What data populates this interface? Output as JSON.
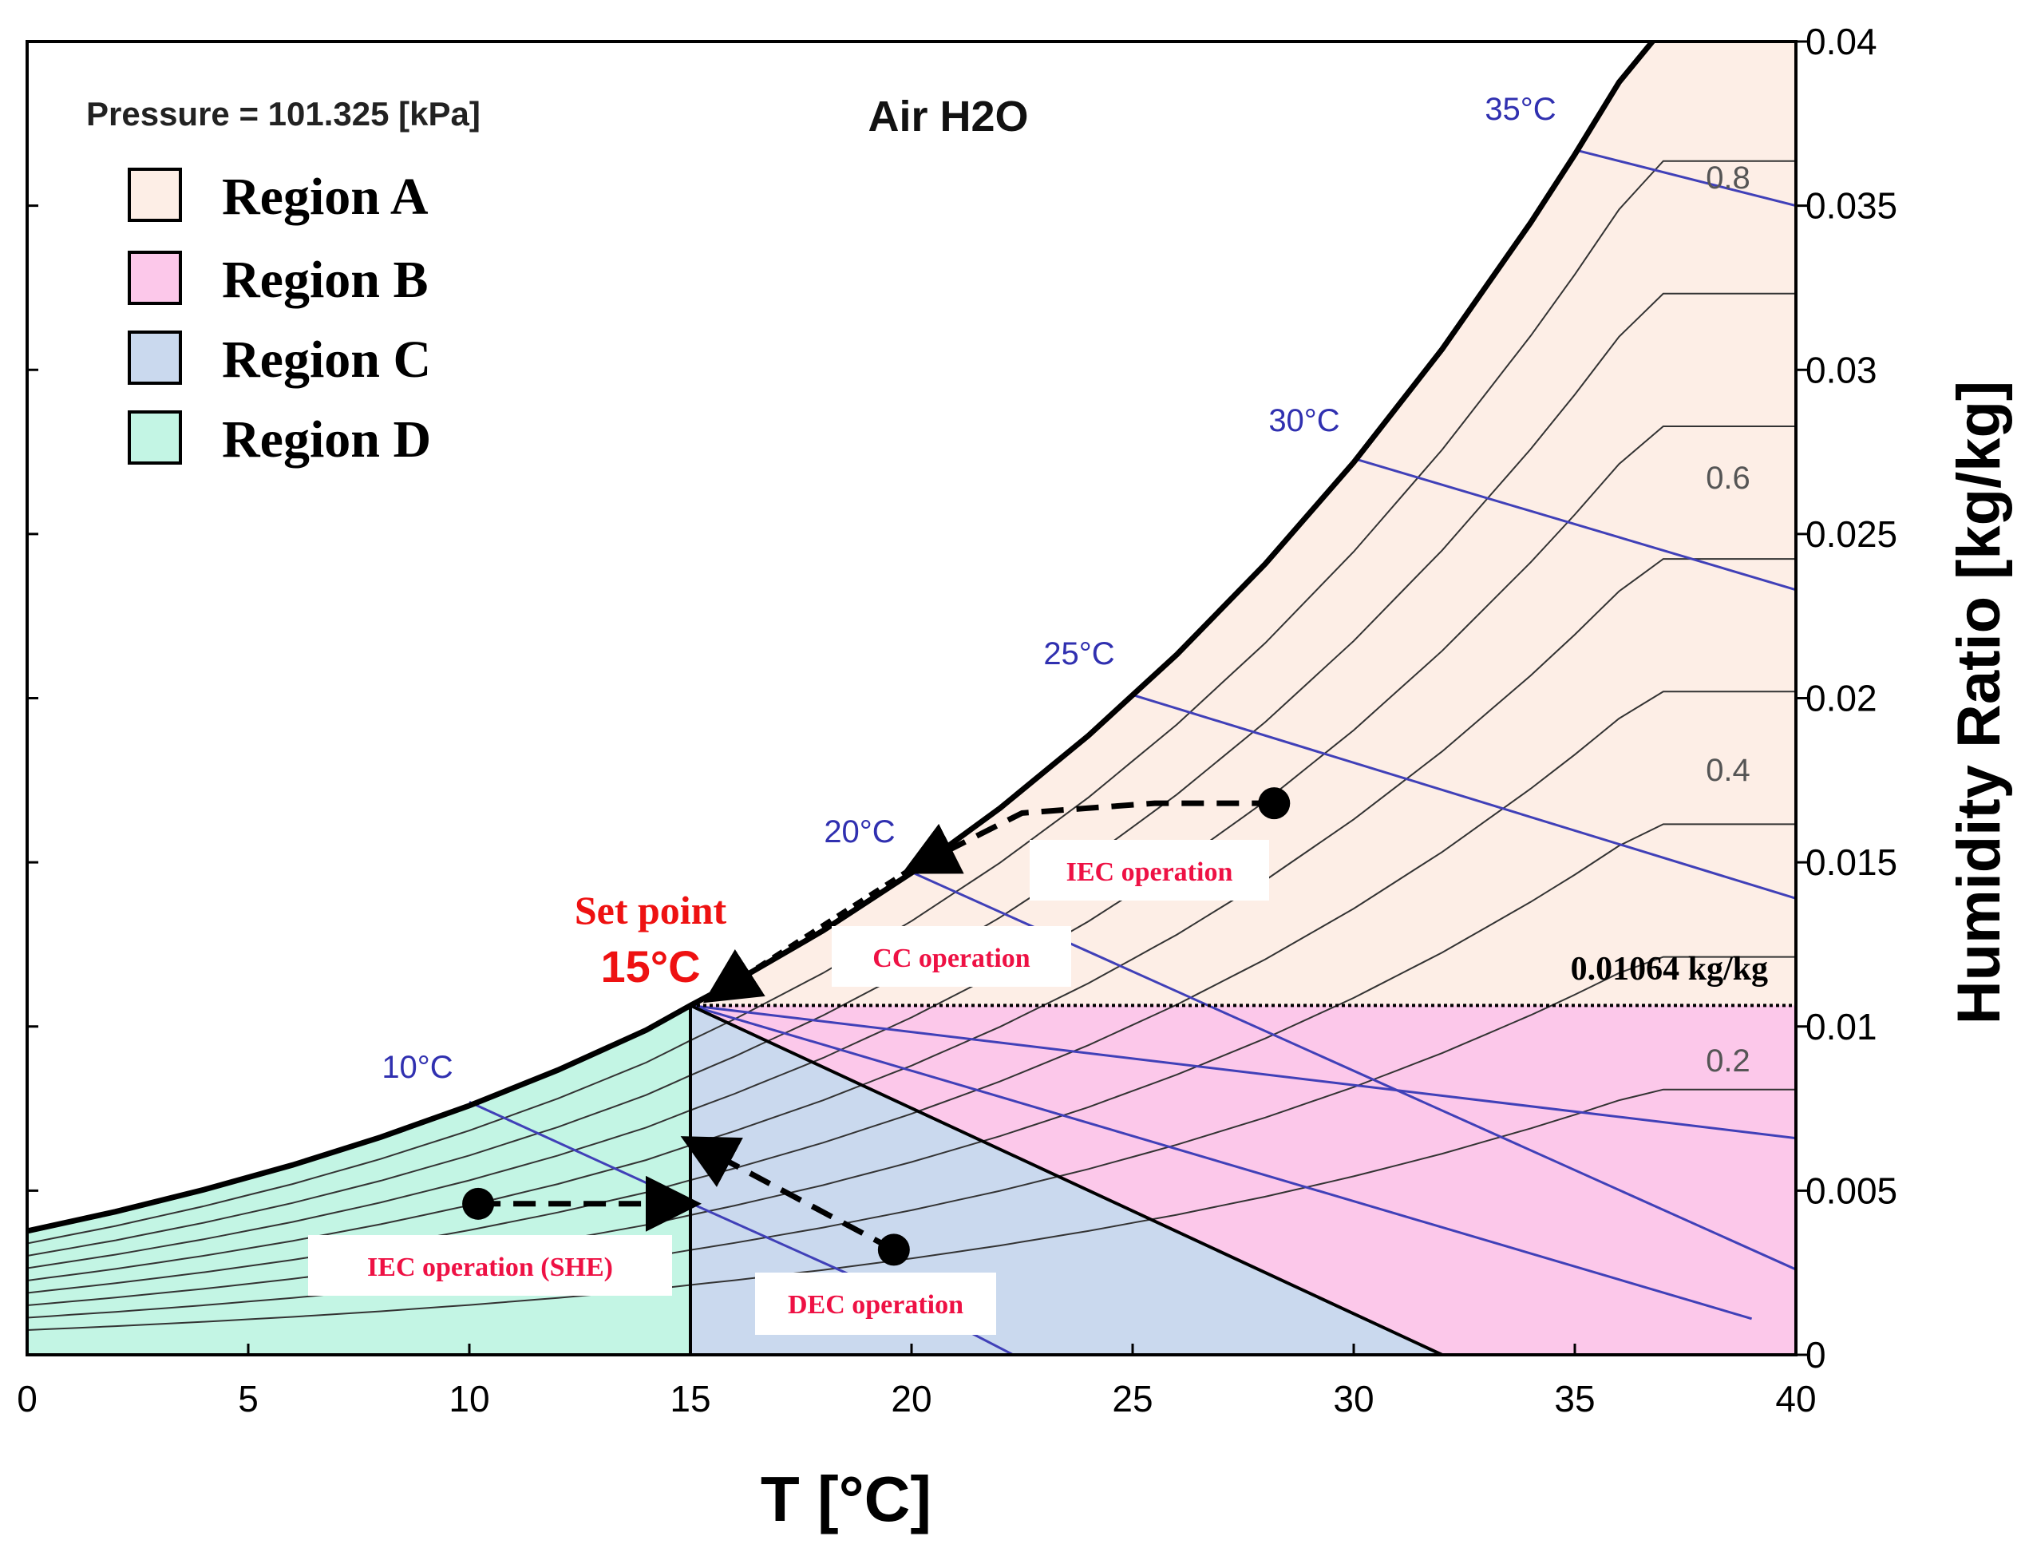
{
  "chart_data": {
    "type": "psychrometric",
    "title": "Air H2O",
    "pressure_label": "Pressure = 101.325 [kPa]",
    "xlabel": "T [°C]",
    "ylabel": "Humidity Ratio [kg/kg]",
    "xlim": [
      0,
      40
    ],
    "ylim": [
      0,
      0.04
    ],
    "x_ticks": [
      0,
      5,
      10,
      15,
      20,
      25,
      30,
      35,
      40
    ],
    "x_tick_labels": [
      "0",
      "5",
      "10",
      "15",
      "20",
      "25",
      "30",
      "35",
      "40"
    ],
    "y_ticks": [
      0,
      0.005,
      0.01,
      0.015,
      0.02,
      0.025,
      0.03,
      0.035,
      0.04
    ],
    "y_tick_labels": [
      "0",
      "0.005",
      "0.01",
      "0.015",
      "0.02",
      "0.025",
      "0.03",
      "0.035",
      "0.04"
    ],
    "legend": [
      {
        "label": "Region A",
        "color": "#fdeee6"
      },
      {
        "label": "Region B",
        "color": "#fcc8ea"
      },
      {
        "label": "Region C",
        "color": "#cad9ee"
      },
      {
        "label": "Region D",
        "color": "#c3f5e4"
      }
    ],
    "saturation_curve": {
      "t": [
        0,
        2,
        4,
        6,
        8,
        10,
        12,
        14,
        15,
        16,
        18,
        20,
        22,
        24,
        26,
        28,
        30,
        32,
        34,
        35,
        36,
        37
      ],
      "w": [
        0.00377,
        0.00436,
        0.00503,
        0.00578,
        0.00663,
        0.00759,
        0.00867,
        0.00989,
        0.01064,
        0.01136,
        0.01292,
        0.01468,
        0.01665,
        0.01886,
        0.02133,
        0.02409,
        0.02718,
        0.03063,
        0.03448,
        0.03656,
        0.03876,
        0.0404
      ]
    },
    "set_point": {
      "t": 15,
      "w": 0.01064,
      "label_line1": "Set point",
      "label_line2": "15°C"
    },
    "set_point_humidity_label": "0.01064 kg/kg",
    "wet_bulb_lines": [
      {
        "label": "10°C",
        "from": [
          10,
          0.0077
        ],
        "to": [
          15.2,
          0.0045
        ]
      },
      {
        "label": "",
        "from": [
          15.2,
          0.0045
        ],
        "to": [
          20,
          0.0016
        ]
      },
      {
        "label": "",
        "from": [
          20,
          0.0016
        ],
        "to": [
          22.3,
          0.0
        ]
      },
      {
        "label": "20°C",
        "from": [
          20,
          0.0147
        ],
        "to": [
          40,
          0.0026
        ]
      },
      {
        "label": "25°C",
        "from": [
          25,
          0.0201
        ],
        "to": [
          40,
          0.0139
        ]
      },
      {
        "label": "30°C",
        "from": [
          30,
          0.0273
        ],
        "to": [
          40,
          0.0233
        ]
      },
      {
        "label": "35°C",
        "from": [
          35,
          0.0367
        ],
        "to": [
          40,
          0.035
        ]
      },
      {
        "label": "",
        "from": [
          15,
          0.01064
        ],
        "to": [
          39,
          0.0011
        ]
      },
      {
        "label": "",
        "from": [
          15,
          0.01064
        ],
        "to": [
          40,
          0.0066
        ]
      }
    ],
    "rh_labels": [
      "0.8",
      "0.6",
      "0.4",
      "0.2"
    ],
    "rh_levels": [
      0.2,
      0.3,
      0.4,
      0.5,
      0.6,
      0.7,
      0.8,
      0.9
    ],
    "operations": [
      {
        "label": "IEC operation",
        "points": [
          [
            28.2,
            0.0168
          ],
          [
            25.5,
            0.0168
          ],
          [
            22.5,
            0.0165
          ],
          [
            20,
            0.0148
          ]
        ]
      },
      {
        "label": "CC operation",
        "points": [
          [
            20,
            0.0148
          ],
          [
            15.5,
            0.0109
          ]
        ]
      },
      {
        "label": "IEC  operation (SHE)",
        "points": [
          [
            10.2,
            0.0046
          ],
          [
            15,
            0.0046
          ]
        ]
      },
      {
        "label": "DEC operation",
        "points": [
          [
            19.6,
            0.0032
          ],
          [
            15,
            0.0065
          ]
        ]
      }
    ],
    "region_d_label": "Region D",
    "region_c_boundary": {
      "from": [
        15,
        0.01064
      ],
      "to": [
        32,
        0
      ]
    }
  }
}
